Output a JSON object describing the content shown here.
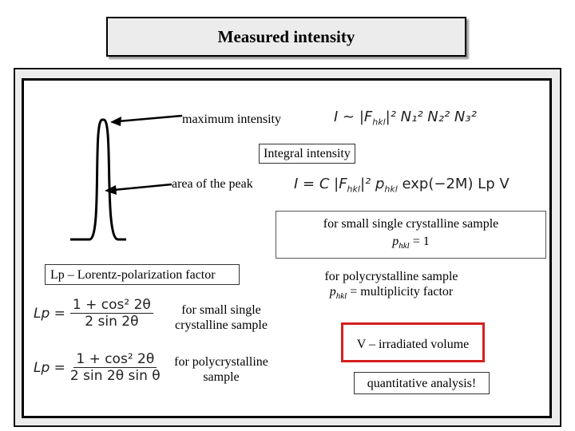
{
  "title": "Measured intensity",
  "labels": {
    "maximum_intensity": "maximum intensity",
    "integral_intensity": "Integral intensity",
    "area_of_peak": "area of the peak",
    "small_single_sample": "for small single crystalline sample",
    "phkl_eq_1": "p",
    "phkl_sub": "hkl",
    "phkl_value": "= 1",
    "lp_heading": "Lp – Lorentz-polarization factor",
    "polycrystalline_sample": "for polycrystalline sample",
    "multiplicity_sym": "p",
    "multiplicity_sub": "hkl",
    "multiplicity_text": "= multiplicity factor",
    "lp_small_single_line1": "for small single",
    "lp_small_single_line2": "crystalline sample",
    "lp_poly_line1": "for polycrystalline",
    "lp_poly_line2": "sample",
    "irradiated_volume": "V – irradiated volume",
    "quantitative": "quantitative analysis!"
  },
  "formulas": {
    "max_I": "I ~ |F",
    "max_sub": "hkl",
    "max_rest": "|² N₁² N₂² N₃²",
    "int_I": "I = C |F",
    "int_sub1": "hkl",
    "int_mid": "|² p",
    "int_sub2": "hkl",
    "int_rest": " exp(−2M) Lp V",
    "lp_left": "Lp =",
    "lp1_num": "1 + cos² 2θ",
    "lp1_den": "2 sin 2θ",
    "lp2_num": "1 + cos² 2θ",
    "lp2_den": "2 sin 2θ sin θ"
  },
  "colors": {
    "highlight_border": "#d42020",
    "title_bg": "#ececec"
  }
}
